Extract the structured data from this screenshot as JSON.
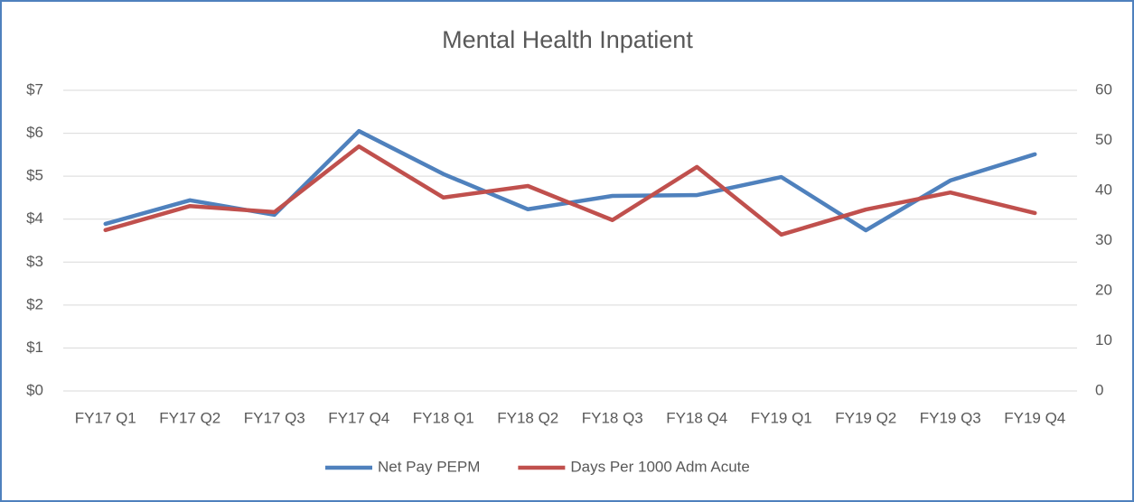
{
  "chart_data": {
    "type": "line",
    "title": "Mental Health Inpatient",
    "categories": [
      "FY17 Q1",
      "FY17 Q2",
      "FY17 Q3",
      "FY17 Q4",
      "FY18 Q1",
      "FY18 Q2",
      "FY18 Q3",
      "FY18 Q4",
      "FY19 Q1",
      "FY19 Q2",
      "FY19 Q3",
      "FY19 Q4"
    ],
    "series": [
      {
        "name": "Net Pay PEPM",
        "color": "#4f81bd",
        "values": [
          3.89,
          4.44,
          4.1,
          6.05,
          5.05,
          4.23,
          4.54,
          4.56,
          4.98,
          3.74,
          4.9,
          5.51
        ]
      },
      {
        "name": "Days Per 1000 Adm Acute",
        "color": "#c0504d",
        "axis": "y2",
        "values": [
          32.1,
          36.9,
          35.7,
          48.8,
          38.6,
          40.9,
          34.1,
          44.7,
          31.2,
          36.2,
          39.6,
          35.5
        ]
      }
    ],
    "ylim": [
      0,
      7
    ],
    "yticks": [
      {
        "value": 0,
        "label": "$0"
      },
      {
        "value": 1,
        "label": "$1"
      },
      {
        "value": 2,
        "label": "$2"
      },
      {
        "value": 3,
        "label": "$3"
      },
      {
        "value": 4,
        "label": "$4"
      },
      {
        "value": 5,
        "label": "$5"
      },
      {
        "value": 6,
        "label": "$6"
      },
      {
        "value": 7,
        "label": "$7"
      }
    ],
    "y2lim": [
      0,
      60
    ],
    "y2ticks": [
      0,
      10,
      20,
      30,
      40,
      50,
      60
    ],
    "grid": true,
    "legend": "bottom"
  }
}
